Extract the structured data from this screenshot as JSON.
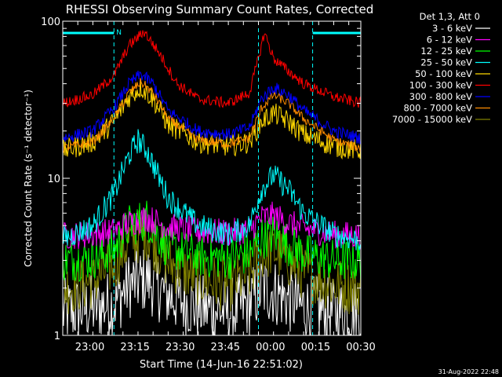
{
  "chart_data": {
    "type": "line",
    "title": "RHESSI Observing Summary Count Rates, Corrected",
    "ylabel": "Corrected Count Rate (s⁻¹ detector⁻¹)",
    "xlabel": "Start Time (14-Jun-16 22:51:02)",
    "yscale": "log",
    "ylim": [
      1,
      100
    ],
    "xlim_minutes": [
      0,
      99
    ],
    "x_tick_labels": [
      "23:00",
      "23:15",
      "23:30",
      "23:45",
      "00:00",
      "00:15",
      "00:30"
    ],
    "x_tick_minutes": [
      9,
      24,
      39,
      54,
      69,
      84,
      99
    ],
    "y_tick_labels": [
      "1",
      "10",
      "100"
    ],
    "y_tick_values": [
      1,
      10,
      100
    ],
    "legend_header": "Det 1,3, Att 0",
    "legend_position": "top-right",
    "night_marker_label": "N",
    "night_intervals_minutes": [
      [
        0,
        17
      ],
      [
        83,
        99
      ]
    ],
    "vertical_markers_minutes": [
      17,
      65,
      83,
      99
    ],
    "timestamp": "31-Aug-2022 22:48",
    "series": [
      {
        "name": "3 - 6 keV",
        "color": "#ffffff",
        "x": [
          0,
          10,
          17,
          22,
          28,
          35,
          45,
          55,
          62,
          66,
          70,
          75,
          80,
          90,
          99
        ],
        "values": [
          1.4,
          1.5,
          1.6,
          2.1,
          2.3,
          1.8,
          1.5,
          1.4,
          1.6,
          2.0,
          1.9,
          1.7,
          1.5,
          1.4,
          1.4
        ]
      },
      {
        "name": "6 - 12 keV",
        "color": "#ff00ff",
        "x": [
          0,
          10,
          17,
          22,
          28,
          35,
          45,
          55,
          62,
          66,
          70,
          75,
          80,
          90,
          99
        ],
        "values": [
          4.3,
          4.4,
          4.6,
          5.2,
          5.6,
          4.9,
          4.6,
          4.5,
          4.7,
          5.6,
          5.8,
          5.2,
          4.8,
          4.4,
          4.3
        ]
      },
      {
        "name": "12 - 25 keV",
        "color": "#00ff00",
        "x": [
          0,
          10,
          17,
          22,
          28,
          35,
          45,
          55,
          62,
          66,
          70,
          75,
          80,
          90,
          99
        ],
        "values": [
          3.0,
          3.1,
          3.5,
          5.0,
          5.5,
          3.6,
          3.2,
          3.1,
          3.3,
          4.2,
          4.4,
          3.8,
          3.3,
          3.0,
          3.0
        ]
      },
      {
        "name": "25 - 50 keV",
        "color": "#00ffff",
        "x": [
          0,
          10,
          17,
          22,
          25,
          28,
          35,
          45,
          55,
          62,
          66,
          70,
          75,
          80,
          90,
          99
        ],
        "values": [
          4.1,
          5.0,
          8.0,
          14.0,
          17.5,
          15.0,
          7.5,
          5.0,
          4.4,
          5.0,
          8.5,
          10.5,
          8.5,
          6.0,
          4.4,
          4.0
        ]
      },
      {
        "name": "50 - 100 keV",
        "color": "#ffd800",
        "x": [
          0,
          10,
          17,
          22,
          26,
          30,
          35,
          45,
          55,
          62,
          66,
          70,
          75,
          80,
          90,
          99
        ],
        "values": [
          15.0,
          17.0,
          23.0,
          33.0,
          38.0,
          32.0,
          22.0,
          17.0,
          16.0,
          17.0,
          23.0,
          26.0,
          23.0,
          19.0,
          16.0,
          15.0
        ]
      },
      {
        "name": "100 - 300 keV",
        "color": "#ff0000",
        "x": [
          0,
          10,
          17,
          22,
          27,
          32,
          38,
          45,
          55,
          62,
          65,
          67,
          70,
          75,
          80,
          90,
          99
        ],
        "values": [
          30.0,
          34.0,
          45.0,
          70.0,
          86.0,
          63.0,
          40.0,
          32.0,
          30.0,
          35.0,
          58.0,
          85.0,
          58.0,
          48.0,
          40.0,
          33.0,
          30.0
        ]
      },
      {
        "name": "300 - 800 keV",
        "color": "#0000ff",
        "x": [
          0,
          10,
          17,
          22,
          26,
          30,
          35,
          45,
          55,
          62,
          66,
          70,
          75,
          80,
          90,
          99
        ],
        "values": [
          18.0,
          20.0,
          28.0,
          40.0,
          46.0,
          40.0,
          27.0,
          20.0,
          19.0,
          21.0,
          32.0,
          38.0,
          34.0,
          27.0,
          20.0,
          18.0
        ]
      },
      {
        "name": "800 - 7000 keV",
        "color": "#ff8c00",
        "x": [
          0,
          10,
          17,
          22,
          26,
          30,
          35,
          45,
          55,
          62,
          66,
          70,
          75,
          80,
          90,
          99
        ],
        "values": [
          15.5,
          17.0,
          24.0,
          35.0,
          41.0,
          35.0,
          24.0,
          17.5,
          16.5,
          18.0,
          28.0,
          34.0,
          30.0,
          24.0,
          17.5,
          15.5
        ]
      },
      {
        "name": "7000 - 15000 keV",
        "color": "#808000",
        "x": [
          0,
          10,
          17,
          22,
          28,
          35,
          45,
          55,
          62,
          66,
          70,
          75,
          80,
          90,
          99
        ],
        "values": [
          2.0,
          2.2,
          2.8,
          4.0,
          4.5,
          2.9,
          2.3,
          2.1,
          2.4,
          3.3,
          3.5,
          3.0,
          2.5,
          2.1,
          2.0
        ]
      }
    ]
  }
}
